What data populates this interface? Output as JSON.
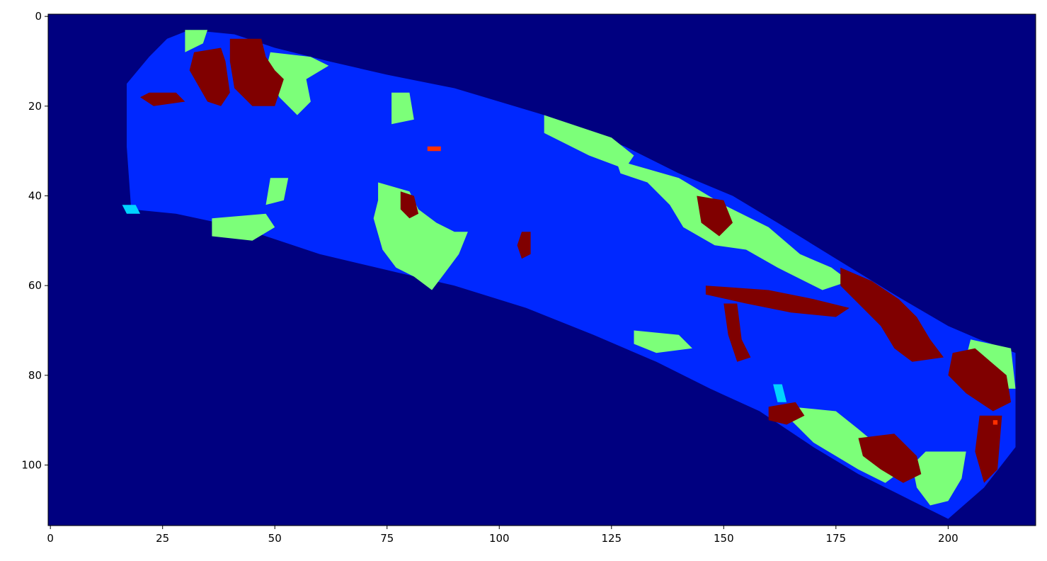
{
  "chart_data": {
    "type": "heatmap",
    "title": "",
    "xlabel": "",
    "ylabel": "",
    "xlim": [
      -0.5,
      219.5
    ],
    "ylim": [
      113.5,
      -0.5
    ],
    "y_axis_inverted": true,
    "grid": false,
    "colorbar": false,
    "colormap": "jet",
    "x_ticks": [
      0,
      25,
      50,
      75,
      100,
      125,
      150,
      175,
      200
    ],
    "x_tick_labels": [
      "0",
      "25",
      "50",
      "75",
      "100",
      "125",
      "150",
      "175",
      "200"
    ],
    "y_ticks": [
      0,
      20,
      40,
      60,
      80,
      100
    ],
    "y_tick_labels": [
      "0",
      "20",
      "40",
      "60",
      "80",
      "100"
    ],
    "value_colors": {
      "background": "#000080",
      "class_1": "#0028ff",
      "class_2": "#00d4ff",
      "class_3": "#7cff79",
      "class_4": "#ff3000",
      "class_5": "#800000"
    },
    "regions": [
      {
        "class": "class_1",
        "points": [
          [
            18,
            43
          ],
          [
            17,
            29
          ],
          [
            17,
            15
          ],
          [
            22,
            9
          ],
          [
            26,
            5
          ],
          [
            31,
            3
          ],
          [
            41,
            4
          ],
          [
            50,
            7
          ],
          [
            62,
            10
          ],
          [
            75,
            13
          ],
          [
            90,
            16
          ],
          [
            110,
            22
          ],
          [
            128,
            29
          ],
          [
            140,
            35
          ],
          [
            152,
            40
          ],
          [
            162,
            46
          ],
          [
            175,
            54
          ],
          [
            188,
            62
          ],
          [
            200,
            69
          ],
          [
            207,
            72
          ],
          [
            215,
            75
          ],
          [
            215,
            96
          ],
          [
            208,
            105
          ],
          [
            200,
            112
          ],
          [
            192,
            108
          ],
          [
            180,
            102
          ],
          [
            170,
            96
          ],
          [
            158,
            88
          ],
          [
            147,
            83
          ],
          [
            135,
            77
          ],
          [
            121,
            71
          ],
          [
            106,
            65
          ],
          [
            90,
            60
          ],
          [
            77,
            57
          ],
          [
            60,
            53
          ],
          [
            42,
            47
          ],
          [
            28,
            44
          ]
        ]
      },
      {
        "class": "class_3",
        "points": [
          [
            30,
            3
          ],
          [
            35,
            3
          ],
          [
            34,
            6
          ],
          [
            30,
            8
          ]
        ]
      },
      {
        "class": "class_3",
        "points": [
          [
            49,
            8
          ],
          [
            58,
            9
          ],
          [
            62,
            11
          ],
          [
            57,
            14
          ],
          [
            58,
            19
          ],
          [
            55,
            22
          ],
          [
            51,
            18
          ],
          [
            48,
            12
          ]
        ]
      },
      {
        "class": "class_3",
        "points": [
          [
            76,
            17
          ],
          [
            80,
            17
          ],
          [
            81,
            23
          ],
          [
            76,
            24
          ]
        ]
      },
      {
        "class": "class_3",
        "points": [
          [
            110,
            22
          ],
          [
            125,
            27
          ],
          [
            130,
            31
          ],
          [
            128,
            34
          ],
          [
            120,
            31
          ],
          [
            110,
            26
          ]
        ]
      },
      {
        "class": "class_3",
        "points": [
          [
            126,
            32
          ],
          [
            140,
            36
          ],
          [
            150,
            42
          ],
          [
            160,
            47
          ],
          [
            167,
            53
          ],
          [
            174,
            56
          ],
          [
            178,
            59
          ],
          [
            172,
            61
          ],
          [
            162,
            56
          ],
          [
            155,
            52
          ],
          [
            148,
            51
          ],
          [
            141,
            47
          ],
          [
            138,
            42
          ],
          [
            133,
            37
          ],
          [
            127,
            35
          ]
        ]
      },
      {
        "class": "class_3",
        "points": [
          [
            73,
            37
          ],
          [
            80,
            39
          ],
          [
            82,
            43
          ],
          [
            86,
            46
          ],
          [
            90,
            48
          ],
          [
            93,
            48
          ],
          [
            91,
            53
          ],
          [
            88,
            57
          ],
          [
            85,
            61
          ],
          [
            81,
            58
          ],
          [
            77,
            56
          ],
          [
            74,
            52
          ],
          [
            72,
            45
          ],
          [
            73,
            41
          ]
        ]
      },
      {
        "class": "class_3",
        "points": [
          [
            36,
            45
          ],
          [
            48,
            44
          ],
          [
            50,
            47
          ],
          [
            45,
            50
          ],
          [
            36,
            49
          ]
        ]
      },
      {
        "class": "class_3",
        "points": [
          [
            49,
            36
          ],
          [
            53,
            36
          ],
          [
            52,
            41
          ],
          [
            48,
            42
          ]
        ]
      },
      {
        "class": "class_3",
        "points": [
          [
            130,
            70
          ],
          [
            140,
            71
          ],
          [
            143,
            74
          ],
          [
            135,
            75
          ],
          [
            130,
            73
          ]
        ]
      },
      {
        "class": "class_3",
        "points": [
          [
            165,
            87
          ],
          [
            175,
            88
          ],
          [
            180,
            92
          ],
          [
            186,
            97
          ],
          [
            190,
            101
          ],
          [
            186,
            104
          ],
          [
            180,
            101
          ],
          [
            175,
            98
          ],
          [
            170,
            95
          ],
          [
            165,
            90
          ]
        ]
      },
      {
        "class": "class_3",
        "points": [
          [
            195,
            97
          ],
          [
            204,
            97
          ],
          [
            203,
            103
          ],
          [
            200,
            108
          ],
          [
            196,
            109
          ],
          [
            193,
            105
          ],
          [
            192,
            100
          ]
        ]
      },
      {
        "class": "class_3",
        "points": [
          [
            205,
            72
          ],
          [
            214,
            74
          ],
          [
            215,
            83
          ],
          [
            210,
            83
          ],
          [
            206,
            80
          ],
          [
            204,
            76
          ]
        ]
      },
      {
        "class": "class_5",
        "points": [
          [
            32,
            8
          ],
          [
            38,
            7
          ],
          [
            39,
            10
          ],
          [
            40,
            17
          ],
          [
            38,
            20
          ],
          [
            35,
            19
          ],
          [
            31,
            12
          ]
        ]
      },
      {
        "class": "class_5",
        "points": [
          [
            40,
            5
          ],
          [
            47,
            5
          ],
          [
            48,
            9
          ],
          [
            50,
            12
          ],
          [
            52,
            14
          ],
          [
            50,
            20
          ],
          [
            45,
            20
          ],
          [
            41,
            16
          ],
          [
            40,
            10
          ]
        ]
      },
      {
        "class": "class_5",
        "points": [
          [
            22,
            17
          ],
          [
            28,
            17
          ],
          [
            30,
            19
          ],
          [
            23,
            20
          ],
          [
            20,
            18
          ]
        ]
      },
      {
        "class": "class_5",
        "points": [
          [
            146,
            60
          ],
          [
            160,
            61
          ],
          [
            170,
            63
          ],
          [
            178,
            65
          ],
          [
            175,
            67
          ],
          [
            165,
            66
          ],
          [
            155,
            64
          ],
          [
            146,
            62
          ]
        ]
      },
      {
        "class": "class_5",
        "points": [
          [
            176,
            56
          ],
          [
            183,
            59
          ],
          [
            189,
            63
          ],
          [
            193,
            67
          ],
          [
            196,
            72
          ],
          [
            199,
            76
          ],
          [
            192,
            77
          ],
          [
            188,
            74
          ],
          [
            185,
            69
          ],
          [
            180,
            64
          ],
          [
            176,
            60
          ]
        ]
      },
      {
        "class": "class_5",
        "points": [
          [
            201,
            75
          ],
          [
            206,
            74
          ],
          [
            213,
            80
          ],
          [
            214,
            86
          ],
          [
            210,
            88
          ],
          [
            204,
            84
          ],
          [
            200,
            80
          ]
        ]
      },
      {
        "class": "class_5",
        "points": [
          [
            180,
            94
          ],
          [
            188,
            93
          ],
          [
            193,
            98
          ],
          [
            194,
            102
          ],
          [
            190,
            104
          ],
          [
            185,
            101
          ],
          [
            181,
            98
          ]
        ]
      },
      {
        "class": "class_5",
        "points": [
          [
            144,
            40
          ],
          [
            150,
            41
          ],
          [
            152,
            46
          ],
          [
            149,
            49
          ],
          [
            145,
            46
          ]
        ]
      },
      {
        "class": "class_5",
        "points": [
          [
            150,
            64
          ],
          [
            153,
            64
          ],
          [
            154,
            72
          ],
          [
            156,
            76
          ],
          [
            153,
            77
          ],
          [
            151,
            71
          ]
        ]
      },
      {
        "class": "class_5",
        "points": [
          [
            78,
            39
          ],
          [
            81,
            40
          ],
          [
            82,
            44
          ],
          [
            80,
            45
          ],
          [
            78,
            43
          ]
        ]
      },
      {
        "class": "class_5",
        "points": [
          [
            105,
            48
          ],
          [
            107,
            48
          ],
          [
            107,
            53
          ],
          [
            105,
            54
          ],
          [
            104,
            51
          ]
        ]
      },
      {
        "class": "class_5",
        "points": [
          [
            160,
            87
          ],
          [
            166,
            86
          ],
          [
            168,
            89
          ],
          [
            164,
            91
          ],
          [
            160,
            90
          ]
        ]
      },
      {
        "class": "class_5",
        "points": [
          [
            207,
            89
          ],
          [
            212,
            89
          ],
          [
            211,
            101
          ],
          [
            208,
            104
          ],
          [
            206,
            97
          ]
        ]
      },
      {
        "class": "class_2",
        "points": [
          [
            16,
            42
          ],
          [
            19,
            42
          ],
          [
            20,
            44
          ],
          [
            17,
            44
          ]
        ]
      },
      {
        "class": "class_2",
        "points": [
          [
            161,
            82
          ],
          [
            163,
            82
          ],
          [
            164,
            86
          ],
          [
            162,
            86
          ]
        ]
      },
      {
        "class": "class_4",
        "points": [
          [
            84,
            29
          ],
          [
            87,
            29
          ],
          [
            87,
            30
          ],
          [
            84,
            30
          ]
        ]
      },
      {
        "class": "class_4",
        "points": [
          [
            210,
            90
          ],
          [
            211,
            90
          ],
          [
            211,
            91
          ],
          [
            210,
            91
          ]
        ]
      }
    ]
  }
}
